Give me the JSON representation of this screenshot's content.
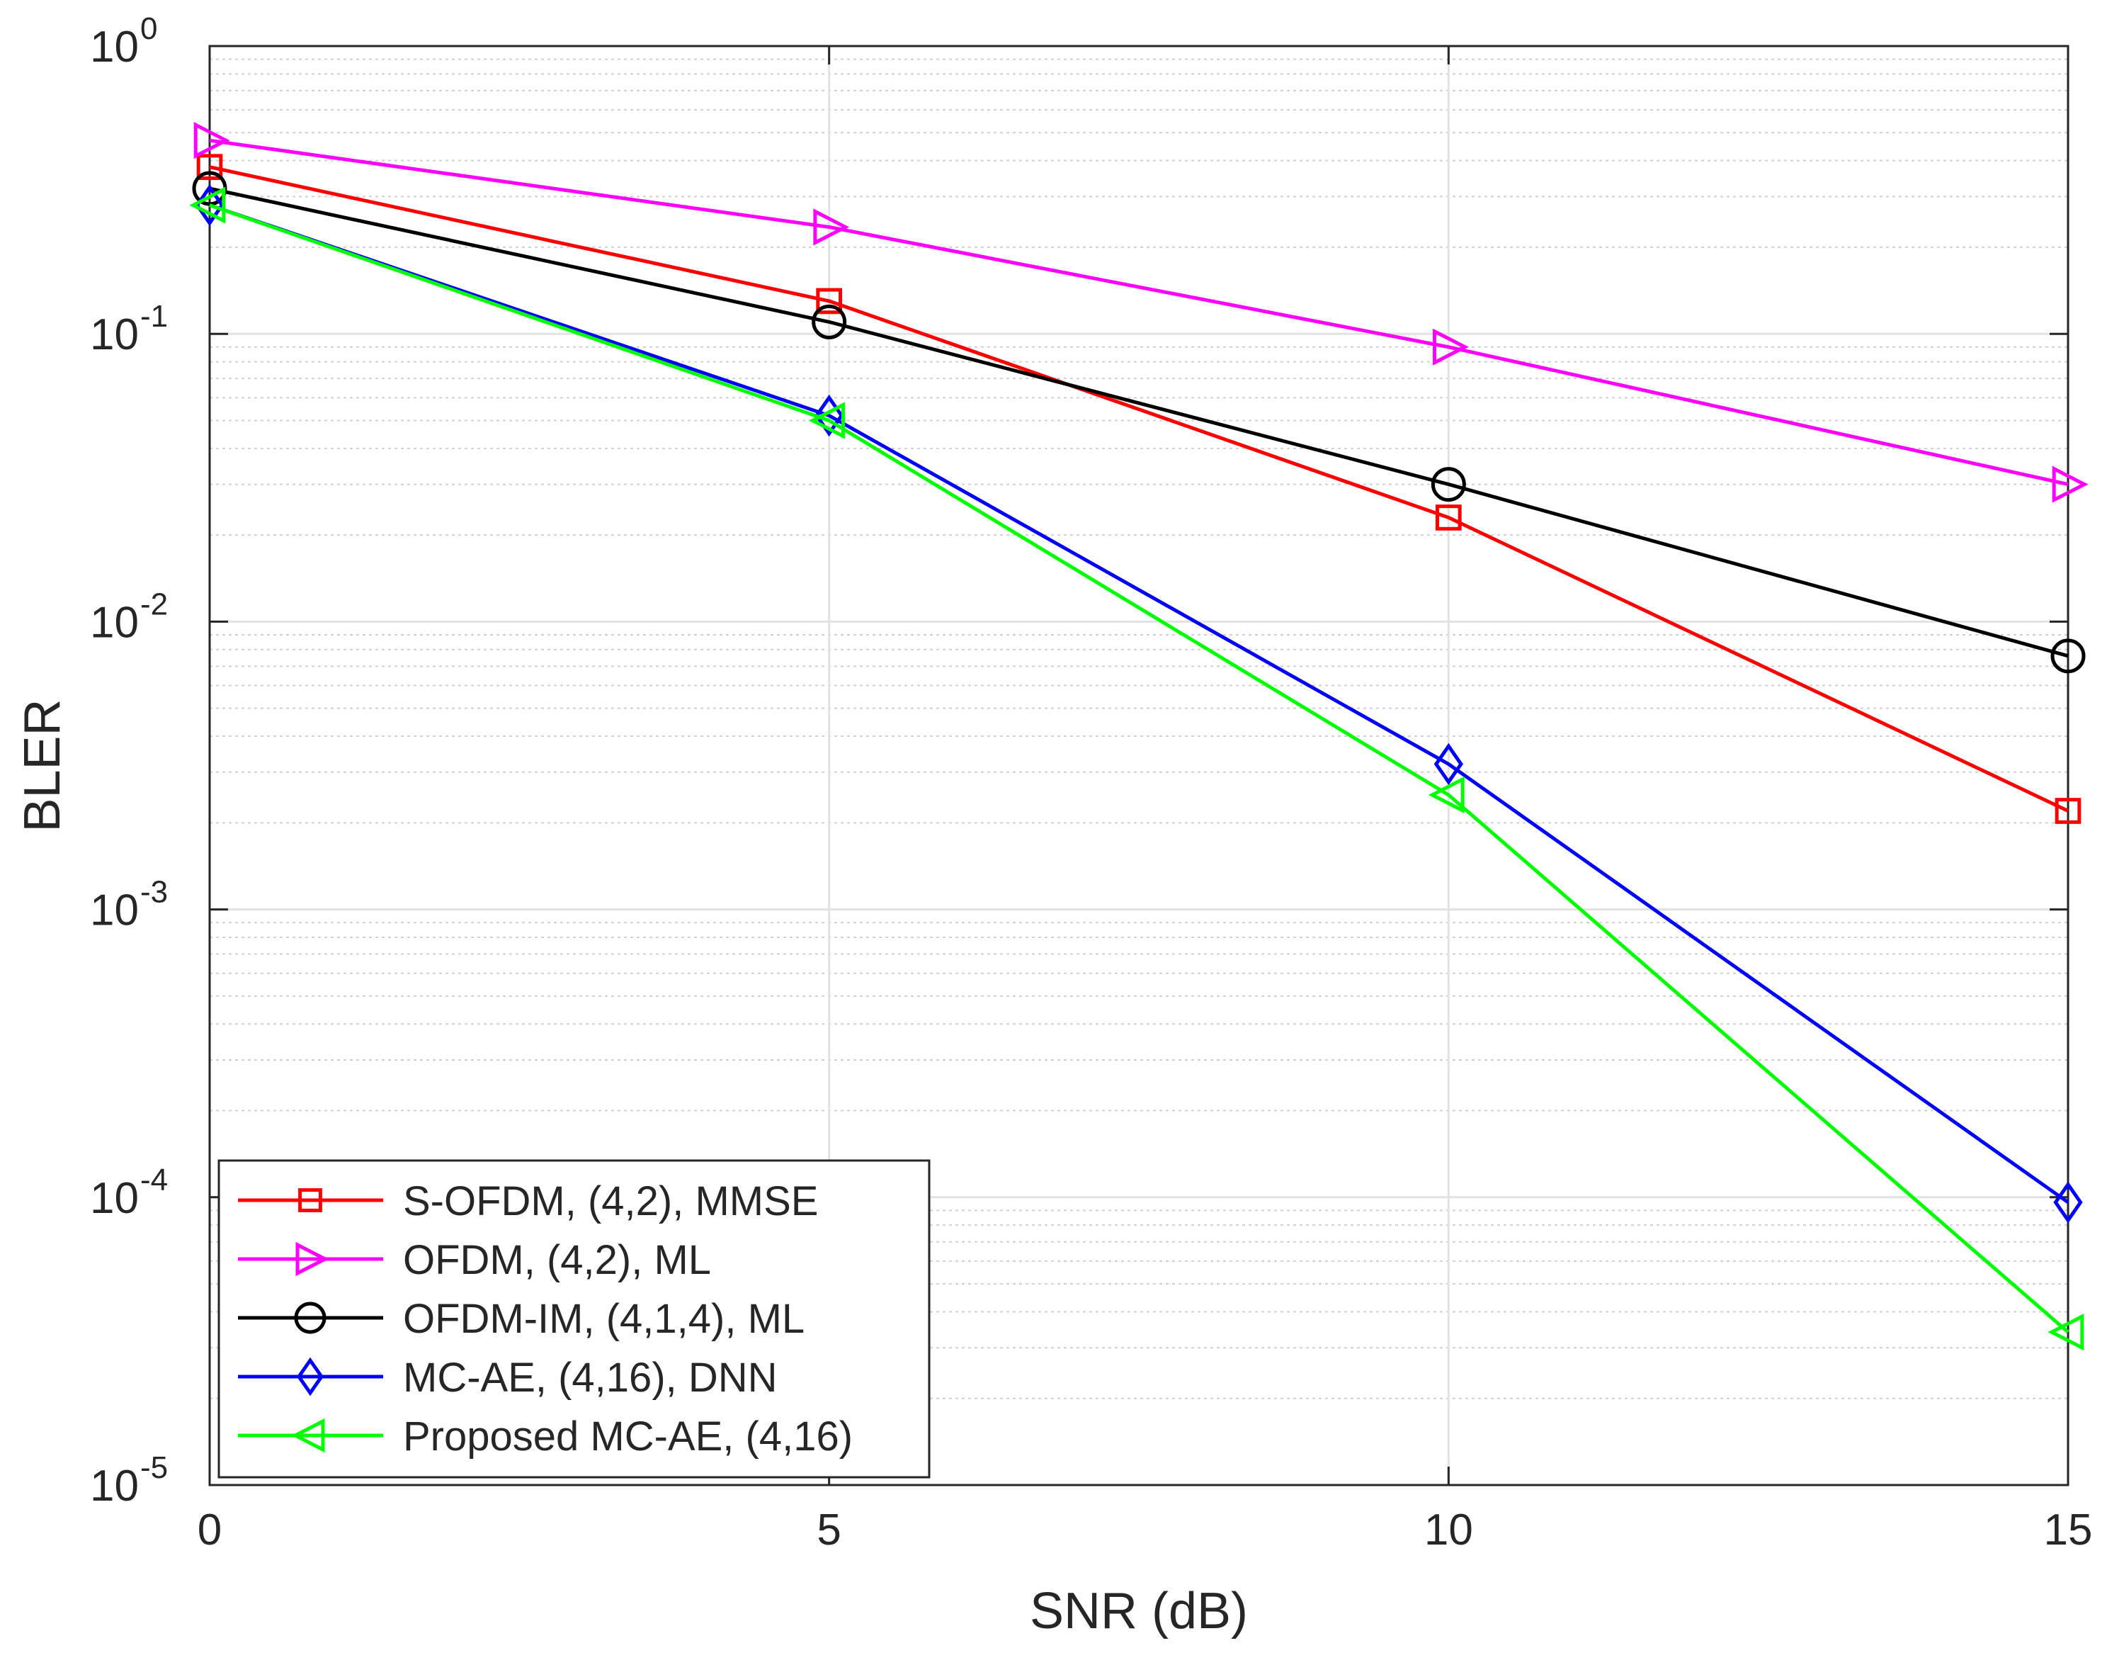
{
  "chart_data": {
    "type": "line",
    "title": "",
    "xlabel": "SNR (dB)",
    "ylabel": "BLER",
    "yscale": "log",
    "xlim": [
      0,
      15
    ],
    "ylim": [
      1e-05,
      1
    ],
    "grid": true,
    "minor_grid": true,
    "legend_position": "bottom-left",
    "x_ticks": [
      {
        "value": 0,
        "label": "0"
      },
      {
        "value": 5,
        "label": "5"
      },
      {
        "value": 10,
        "label": "10"
      },
      {
        "value": 15,
        "label": "15"
      }
    ],
    "y_ticks": [
      {
        "value": 1,
        "base": "10",
        "exp": "0"
      },
      {
        "value": 0.1,
        "base": "10",
        "exp": "-1"
      },
      {
        "value": 0.01,
        "base": "10",
        "exp": "-2"
      },
      {
        "value": 0.001,
        "base": "10",
        "exp": "-3"
      },
      {
        "value": 0.0001,
        "base": "10",
        "exp": "-4"
      },
      {
        "value": 1e-05,
        "base": "10",
        "exp": "-5"
      }
    ],
    "series": [
      {
        "name": "S-OFDM, (4,2), MMSE",
        "color": "#ff0000",
        "marker": "square",
        "x": [
          0,
          5,
          10,
          15
        ],
        "values": [
          0.38,
          0.13,
          0.023,
          0.0022
        ]
      },
      {
        "name": "OFDM, (4,2), ML",
        "color": "#ff00ff",
        "marker": "triangle-right",
        "x": [
          0,
          5,
          10,
          15
        ],
        "values": [
          0.47,
          0.235,
          0.09,
          0.03
        ]
      },
      {
        "name": "OFDM-IM, (4,1,4), ML",
        "color": "#000000",
        "marker": "circle",
        "x": [
          0,
          5,
          10,
          15
        ],
        "values": [
          0.32,
          0.11,
          0.03,
          0.0076
        ]
      },
      {
        "name": "MC-AE, (4,16), DNN",
        "color": "#0000ff",
        "marker": "diamond",
        "x": [
          0,
          5,
          10,
          15
        ],
        "values": [
          0.28,
          0.052,
          0.0032,
          9.6e-05
        ]
      },
      {
        "name": "Proposed MC-AE, (4,16)",
        "color": "#00ff00",
        "marker": "triangle-left",
        "x": [
          0,
          5,
          10,
          15
        ],
        "values": [
          0.28,
          0.05,
          0.0025,
          3.4e-05
        ]
      }
    ]
  }
}
